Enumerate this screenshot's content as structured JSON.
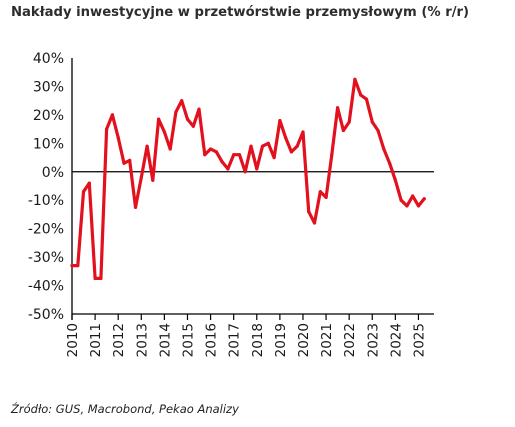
{
  "title": "Nakłady inwestycyjne w przetwórstwie przemysłowym (% r/r)",
  "source": "Źródło: GUS, Macrobond, Pekao Analizy",
  "colors": {
    "series": "#e3101e",
    "axis": "#000000",
    "text": "#1a1a1a"
  },
  "chart_data": {
    "type": "line",
    "title": "Nakłady inwestycyjne w przetwórstwie przemysłowym (% r/r)",
    "xlabel": "",
    "ylabel": "",
    "x_ticks": [
      "2010",
      "2011",
      "2012",
      "2013",
      "2014",
      "2015",
      "2016",
      "2017",
      "2018",
      "2019",
      "2020",
      "2021",
      "2022",
      "2023",
      "2024",
      "2025"
    ],
    "y_ticks": [
      "40%",
      "30%",
      "20%",
      "10%",
      "0%",
      "-10%",
      "-20%",
      "-30%",
      "-40%",
      "-50%"
    ],
    "ylim": [
      -50,
      40
    ],
    "xlim": [
      2010.0,
      2025.5
    ],
    "grid": false,
    "legend": "none",
    "series": [
      {
        "x": [
          2010.0,
          2010.25,
          2010.5,
          2010.75,
          2011.0,
          2011.25,
          2011.5,
          2011.75,
          2012.0,
          2012.25,
          2012.5,
          2012.75,
          2013.0,
          2013.25,
          2013.5,
          2013.75,
          2014.0,
          2014.25,
          2014.5,
          2014.75,
          2015.0,
          2015.25,
          2015.5,
          2015.75,
          2016.0,
          2016.25,
          2016.5,
          2016.75,
          2017.0,
          2017.25,
          2017.5,
          2017.75,
          2018.0,
          2018.25,
          2018.5,
          2018.75,
          2019.0,
          2019.25,
          2019.5,
          2019.75,
          2020.0,
          2020.25,
          2020.5,
          2020.75,
          2021.0,
          2021.25,
          2021.5,
          2021.75,
          2022.0,
          2022.25,
          2022.5,
          2022.75,
          2023.0,
          2023.25,
          2023.5,
          2023.75,
          2024.0,
          2024.25,
          2024.5,
          2024.75,
          2025.0,
          2025.25
        ],
        "values": [
          -33,
          -33,
          -7,
          -4,
          -37.5,
          -37.5,
          15,
          20,
          12,
          3,
          4,
          -12.5,
          -2,
          9,
          -3,
          18.5,
          14,
          8,
          21,
          25,
          18.5,
          16,
          22,
          6,
          8,
          7,
          3.5,
          1,
          6,
          6,
          0,
          9,
          1,
          9,
          10,
          5,
          18,
          12,
          7,
          9,
          14,
          -14,
          -18,
          -7,
          -9,
          6,
          22.5,
          14.5,
          17.5,
          32.5,
          27,
          25.5,
          17.5,
          14.5,
          8,
          3,
          -3,
          -10,
          -12,
          -8.5,
          -12,
          -9.5
        ]
      }
    ]
  }
}
